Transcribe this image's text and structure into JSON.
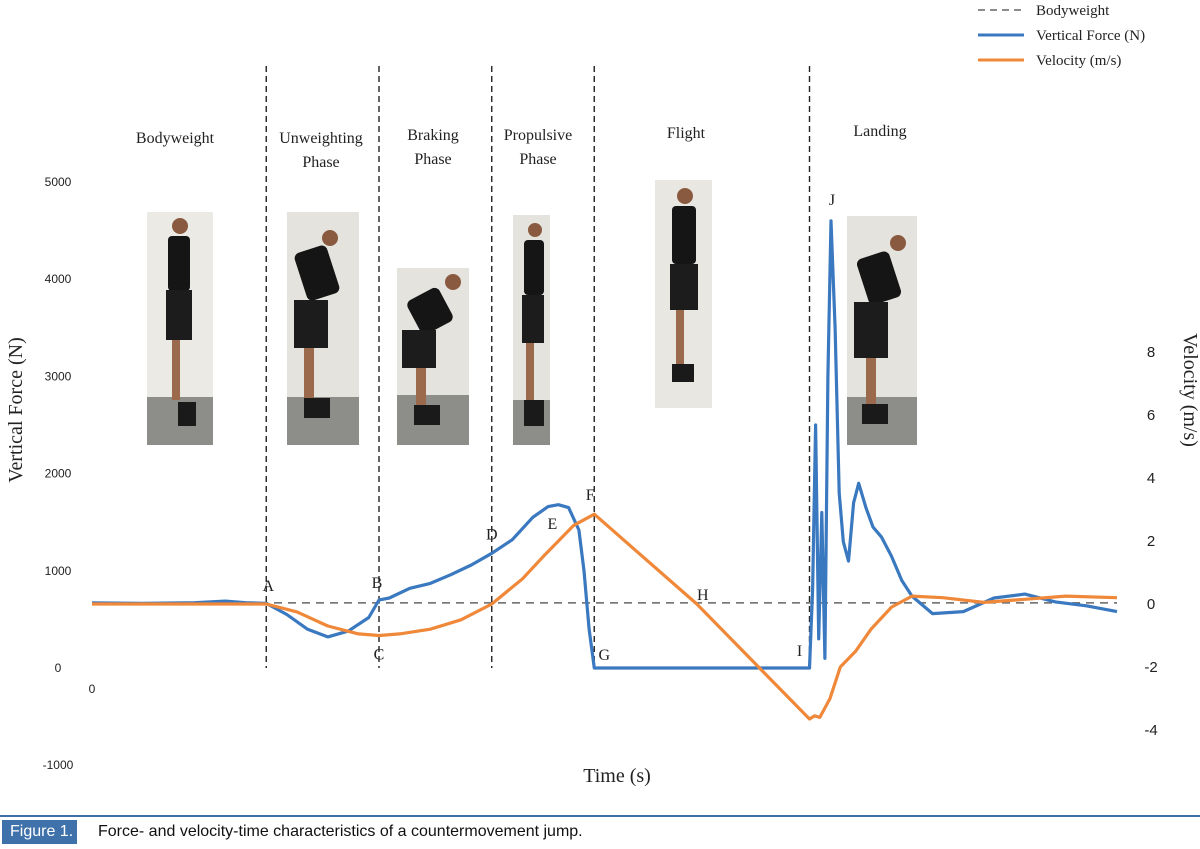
{
  "chart_data": {
    "type": "line",
    "xlabel": "Time (s)",
    "ylabel": "Vertical Force (N)",
    "y2label": "Velocity  (m/s)",
    "y_ticks": [
      -1000,
      0,
      1000,
      2000,
      3000,
      4000,
      5000
    ],
    "y2_ticks": [
      -4,
      -2,
      0,
      2,
      4,
      6,
      8
    ],
    "x_ticks": [
      "0"
    ],
    "ylim": [
      -1000,
      5000
    ],
    "y2lim": [
      -4,
      8
    ],
    "grid": false,
    "legend_position": "top-right",
    "legend": [
      {
        "name": "Bodyweight",
        "style": "dashed",
        "color": "#666666"
      },
      {
        "name": "Vertical Force (N)",
        "style": "solid",
        "color": "#3a78c0"
      },
      {
        "name": "Velocity  (m/s)",
        "style": "solid",
        "color": "#f0883a"
      }
    ],
    "bodyweight": 670,
    "phases": [
      "Bodyweight",
      "Unweighting Phase",
      "Braking Phase",
      "Propulsive Phase",
      "Flight",
      "Landing"
    ],
    "phase_boundaries_t": [
      0.17,
      0.28,
      0.39,
      0.49,
      0.7
    ],
    "points": [
      {
        "label": "A",
        "t": 0.17,
        "series": "force",
        "value": 670
      },
      {
        "label": "B",
        "t": 0.28,
        "series": "force",
        "value": 700
      },
      {
        "label": "C",
        "t": 0.28,
        "series": "velocity",
        "value": -1.0
      },
      {
        "label": "D",
        "t": 0.39,
        "series": "force",
        "value": 1180
      },
      {
        "label": "E",
        "t": 0.455,
        "series": "velocity",
        "value": 2.0
      },
      {
        "label": "F",
        "t": 0.49,
        "series": "velocity",
        "value": 2.85
      },
      {
        "label": "G",
        "t": 0.49,
        "series": "force",
        "value": 0
      },
      {
        "label": "H",
        "t": 0.59,
        "series": "velocity",
        "value": 0
      },
      {
        "label": "I",
        "t": 0.7,
        "series": "force",
        "value": 0
      },
      {
        "label": "J",
        "t": 0.72,
        "series": "force",
        "value": 4600
      }
    ],
    "series": [
      {
        "name": "Vertical Force (N)",
        "axis": "left",
        "t": [
          0,
          0.05,
          0.1,
          0.13,
          0.15,
          0.17,
          0.19,
          0.21,
          0.23,
          0.25,
          0.27,
          0.28,
          0.29,
          0.31,
          0.33,
          0.35,
          0.37,
          0.39,
          0.41,
          0.43,
          0.445,
          0.455,
          0.465,
          0.475,
          0.48,
          0.485,
          0.49,
          0.5,
          0.55,
          0.6,
          0.65,
          0.7,
          0.703,
          0.706,
          0.709,
          0.712,
          0.715,
          0.718,
          0.721,
          0.725,
          0.729,
          0.733,
          0.738,
          0.743,
          0.748,
          0.755,
          0.762,
          0.77,
          0.78,
          0.79,
          0.8,
          0.82,
          0.85,
          0.88,
          0.91,
          0.94,
          0.97,
          1.0
        ],
        "values": [
          670,
          665,
          672,
          688,
          672,
          665,
          550,
          400,
          320,
          380,
          520,
          700,
          720,
          820,
          870,
          960,
          1060,
          1180,
          1320,
          1550,
          1660,
          1680,
          1650,
          1420,
          1000,
          400,
          0,
          0,
          0,
          0,
          0,
          0,
          800,
          2500,
          300,
          1600,
          100,
          3000,
          4600,
          3500,
          1800,
          1300,
          1100,
          1700,
          1900,
          1650,
          1450,
          1350,
          1150,
          900,
          740,
          560,
          580,
          720,
          760,
          680,
          640,
          580
        ]
      },
      {
        "name": "Velocity  (m/s)",
        "axis": "right",
        "t": [
          0,
          0.1,
          0.17,
          0.2,
          0.23,
          0.26,
          0.28,
          0.3,
          0.33,
          0.36,
          0.39,
          0.42,
          0.44,
          0.455,
          0.47,
          0.49,
          0.59,
          0.7,
          0.705,
          0.71,
          0.715,
          0.72,
          0.73,
          0.745,
          0.76,
          0.78,
          0.8,
          0.83,
          0.87,
          0.91,
          0.95,
          1.0
        ],
        "values": [
          0,
          0,
          0,
          -0.25,
          -0.7,
          -0.95,
          -1.0,
          -0.95,
          -0.8,
          -0.5,
          0,
          0.8,
          1.5,
          2.0,
          2.5,
          2.85,
          0,
          -3.65,
          -3.55,
          -3.6,
          -3.3,
          -3.0,
          -2.0,
          -1.5,
          -0.8,
          -0.1,
          0.25,
          0.2,
          0.05,
          0.15,
          0.25,
          0.2
        ]
      }
    ]
  },
  "caption": {
    "label": "Figure 1.",
    "text": "Force- and velocity-time characteristics of a countermovement jump."
  }
}
